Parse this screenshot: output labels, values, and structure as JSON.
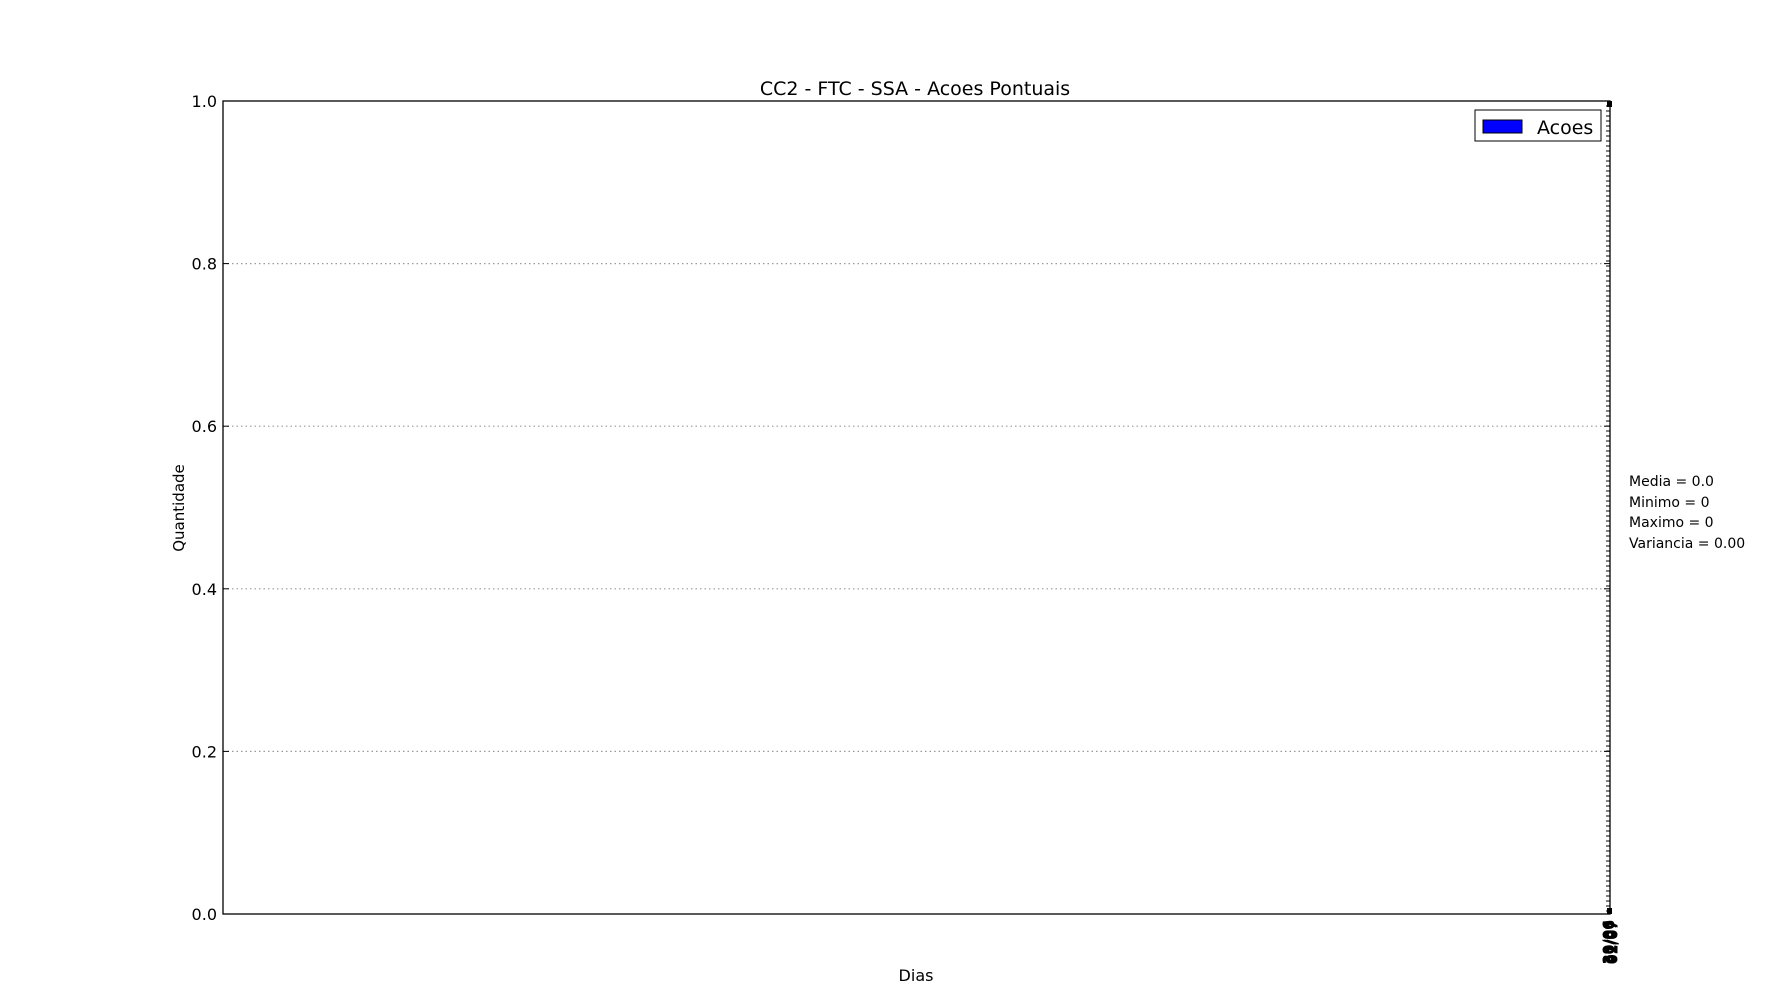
{
  "chart_data": {
    "type": "bar",
    "title": "CC2 - FTC - SSA - Acoes Pontuais",
    "xlabel": "Dias",
    "ylabel": "Quantidade",
    "ylim": [
      0.0,
      1.0
    ],
    "yticks": [
      "0.0",
      "0.2",
      "0.4",
      "0.6",
      "0.8",
      "1.0"
    ],
    "grid": "horizontal dotted",
    "legend_position": "top-right",
    "categories": [
      "29/06",
      "30/06",
      "01/07",
      "02/07"
    ],
    "series": [
      {
        "name": "Acoes",
        "color": "#0000ff",
        "values": [
          0,
          0,
          0,
          0
        ]
      }
    ],
    "stats": [
      "Media = 0.0",
      "Minimo = 0",
      "Maximo = 0",
      "Variancia = 0.00"
    ]
  }
}
